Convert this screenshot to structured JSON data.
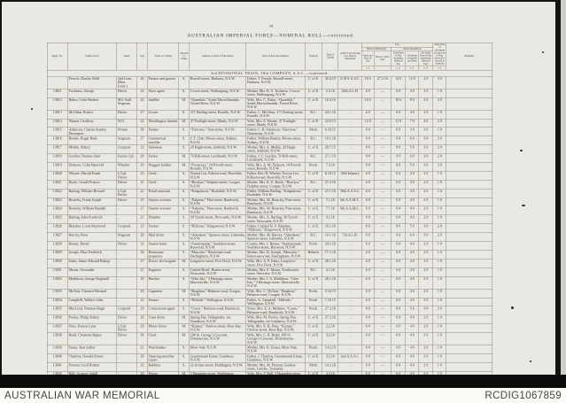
{
  "page": {
    "number": "19",
    "title": "AUSTRALIAN IMPERIAL FORCE—NOMINAL ROLL—continued.",
    "section": "3rd DIVISIONAL TRAIN, 18th COMPANY, A.S.C.—continued."
  },
  "footer": {
    "left": "AUSTRALIAN WAR MEMORIAL",
    "right": "RCDIG1067859"
  },
  "table": {
    "headers": {
      "regtl_no": "Regtl. No.",
      "name": "Name in full",
      "rank": "Rank",
      "age": "Age",
      "trade": "Trade or Calling",
      "ms": "Married or Single",
      "address": "Address at Date of Enrolment",
      "nok": "Next of Kin and Address",
      "religion": "Religion",
      "date_joining": "Date of Joining",
      "amf_unit": "A.M.F. Unit Serving in at Date of Enlistment",
      "pay": "Pay",
      "before": "Before Embarkation",
      "after": "After Embarkation",
      "rate": "Rank and Rate of Pay",
      "date_paid": "Date to which Paid",
      "daily": "Daily Rate of Pay, including Deferred Pay",
      "allot": "Allotment re-payable per Diem",
      "net": "Net Daily Rate of Pay (including Deferred Pay)",
      "allot2": "Daily Rate of Allotment (if any) out of Pay, directed to be paid in Australia",
      "remarks": "Remarks",
      "sd": "s. d."
    },
    "row_keys": [
      "no",
      "name",
      "rank",
      "age",
      "trade",
      "ms",
      "address",
      "nok",
      "religion",
      "date",
      "unit",
      "rate",
      "date_paid",
      "daily",
      "allot",
      "net",
      "allot2",
      "remarks"
    ],
    "center_cols": [
      "no",
      "age",
      "ms",
      "religion",
      "date",
      "unit",
      "rate",
      "date_paid",
      "daily",
      "allot",
      "net",
      "allot2"
    ],
    "rows": [
      [
        "",
        "French, Charles Wald",
        "2nd Lieut. (Hon. Lieut.)",
        "26",
        "Farmer and grazier",
        "S.",
        "Russell-street, Bathurst, N.S.W.",
        "Father, T. French, Russell-street, Bathurst, N.S.W.",
        "C. of E.",
        "30.4.15",
        "2/18 A.A.S.C.",
        "10 6",
        "27.2.16",
        "14 0",
        "12 0",
        "2 0",
        "3 0",
        ""
      ],
      [
        "13811",
        "Tuckness, George",
        "Driver",
        "22",
        "Store agent",
        "S.",
        "Crown-street, Wollongong, N.S.W.",
        "Mother, Mrs. R. S. Tuckness, Crown-street, Wollongong, N.S.W.",
        "C. of E.",
        "2.3.16",
        "26th A.L.H.",
        "6 0",
        "—",
        "6 0",
        "4 0",
        "2 0",
        "1 0",
        ""
      ],
      [
        "13812",
        "Baker, Colin Herbert",
        "Mil. Staff Sergeant",
        "22",
        "Saddler",
        "M.",
        "“Quambih,” South Murwillumbah, Tweed River, N.S.W.",
        "Wife, Mrs. C. Baker, “Quambih,” South Murwillumbah, Tweed River, N.S.W.",
        "C. of E.",
        "18.4.16",
        "..",
        "10 6",
        "—",
        "10 6",
        "8 0",
        "2 6",
        "2 0",
        ""
      ],
      [
        "13813",
        "McGlinn, Robert",
        "Driver",
        "27",
        "Grocer",
        "S.",
        "371 Darling-street, Rozelle, N.S.W.",
        "Father, C. McGlinn, 371 Darling-street, Rozelle, N.S.W.",
        "R.C.",
        "24.1.16",
        "..",
        "6 0",
        "—",
        "6 0",
        "4 0",
        "2 0",
        "1 0",
        ""
      ],
      [
        "13814",
        "Warner, Geoffrey",
        "W.O.",
        "22",
        "Metallurgist chemist",
        "M.",
        "47 Fairlight-street, Manly, N.S.W.",
        "Wife, Mrs. F. Warner, 47 Fairlight-street, Manly, N.S.W.",
        "C. of E.",
        "22.9.15",
        "..",
        "12 0",
        "—",
        "11 0",
        "7 0",
        "4 0",
        "2 0",
        ""
      ],
      [
        "13815",
        "Adamson, Charles Stanley Davenport",
        "Private",
        "30",
        "Farmer",
        "S.",
        "“Fairview,” Narromine, N.S.W.",
        "Father, C. B. Adamson, “Fairview,” Narromine, N.S.W.",
        "Meth.",
        "6.10.15",
        "..",
        "6 0",
        "—",
        "6 0",
        "3 0",
        "3 0",
        "1 0",
        ""
      ],
      [
        "13816",
        "Beattie, Roger Bede",
        "Sergeant",
        "27",
        "Commercial traveller",
        "S.",
        "C.T. Club, Moore-street, Sydney, N.S.W.",
        "Father, William Beattie, Moore-street, Sydney, N.S.W.",
        "R.C.",
        "10.1.16",
        "..",
        "9 0",
        "—",
        "9 0",
        "6 0",
        "3 0",
        "2 0",
        ""
      ],
      [
        "13817",
        "Meikle, Sidney",
        "Corporal",
        "23",
        "Salesman",
        "S.",
        "29 Hugh-street, Ashfield, N.S.W.",
        "Mother, Mrs. A. Meikle, 29 Hugh-street, Ashfield, N.S.W.",
        "C. of E.",
        "29.7.15",
        "..",
        "8 6",
        "—",
        "8 6",
        "5 6",
        "3 0",
        "2 0",
        ""
      ],
      [
        "13818",
        "Gordon, Thomas Alan",
        "Farrier Cpl.",
        "28",
        "Farrier",
        "M.",
        "70 Hill-street, Leichhardt, N.S.W.",
        "Father, J. C. Gordon, 70 Hill-street, Leichhardt, N.S.W.",
        "R.C.",
        "27.1.16",
        "..",
        "9 0",
        "—",
        "9 0",
        "6 0",
        "3 0",
        "2 0",
        ""
      ],
      [
        "13819",
        "Dickson, Colin Harwold",
        "Wheeler",
        "29",
        "Waggon builder",
        "M.",
        "“Footscray,” 14 Powell-street, Rozelle, N.S.W.",
        "Wife, Mrs. A. M. Dickson, 14 Powell-street, Rozelle, N.S.W.",
        "Presb.",
        "7.3.16",
        "..",
        "8 0",
        "—",
        "8 0",
        "5 0",
        "3 0",
        "2 0",
        ""
      ],
      [
        "13820",
        "Wheate, Harold Frank",
        "L/Cpl. Driver",
        "25",
        "Clerk",
        "S.",
        "Norton Lea, Killeen-road, Roseville, N.S.W.",
        "Father, Rev. H. Wheate, Norton Lea, Killeen-road, Roseville, N.S.W.",
        "C. of E.",
        "6.10.15",
        "36th Infantry",
        "6 0",
        "—",
        "6 0",
        "4 0",
        "2 0",
        "1 0",
        ""
      ],
      [
        "13821",
        "Boyle, Gerald Francis",
        "Driver",
        "21",
        "Clerk",
        "S.",
        "“Rosslyn,” Dolphin-street, Coogee, N.S.W.",
        "Mother, Mrs. K. E. Boyle, “Rosslyn,” Dolphin-street, Coogee, N.S.W.",
        "R.C.",
        "27.3.16",
        "..",
        "6 0",
        "—",
        "6 0",
        "4 0",
        "2 0",
        "1 0",
        ""
      ],
      [
        "13822",
        "Barling, William Howard",
        "L/Cpl. Driver",
        "22",
        "Postal assistant",
        "S.",
        "“Kingsdown,” Rockdale, N.S.W.",
        "Father, William Barling, “Kingsdown,” Rockdale, N.S.W.",
        "C. of E.",
        "27.1.16",
        "30th A.A.S.C.",
        "6 0",
        "—",
        "6 0",
        "4 0",
        "2 0",
        "1 0",
        ""
      ],
      [
        "13823",
        "Brearley, Frank Joseph",
        "Driver",
        "25",
        "Station overseer",
        "S.",
        "“Nalpena,” Pine-street, Randwick, N.S.W.",
        "Mother, Mrs. M. Brearley, Pine-street, Randwick, N.S.W.",
        "C. of E.",
        "7.1.16",
        "6th A.A.M.C.",
        "6 0",
        "—",
        "6 0",
        "4 0",
        "2 0",
        "1 0",
        ""
      ],
      [
        "13824",
        "Brearley, William Randall",
        "..",
        "27",
        "Station overseer",
        "S.",
        "“Nalpena,” Pine-street, Randwick, N.S.W.",
        "Mother, Mrs. M. Brearley, Pine-street, Randwick, N.S.W.",
        "C. of E.",
        "7.1.16",
        "6th A.A.M.C.",
        "6 0",
        "—",
        "6 0",
        "4 0",
        "2 0",
        "1 0",
        ""
      ],
      [
        "13825",
        "Barling, John Frederick",
        "..",
        "21",
        "Plumber",
        "S.",
        "30 Tyrrell-street, Newcastle, N.S.W.",
        "Mother, Mrs. A. Barling, 30 Tyrrell-street, Newcastle, N.S.W.",
        "C. of E.",
        "4.1.16",
        "..",
        "6 0",
        "—",
        "6 0",
        "4 0",
        "2 0",
        "1 0",
        ""
      ],
      [
        "13826",
        "Blaydon, Louis Raymond",
        "Corporal",
        "23",
        "Farmer",
        "S.",
        "“Hillcrest,” Kingswood, N.S.W.",
        "Father, Colonel H. S. Blaydon, “Hillcrest,” Kingswood, N.S.W.",
        "C. of E.",
        "16.1.16",
        "..",
        "8 6",
        "—",
        "8 6",
        "5 6",
        "3 0",
        "2 0",
        ""
      ],
      [
        "13827",
        "Harvey, Peter",
        "Sergeant",
        "29",
        "Mail driver",
        "S.",
        "“Aberdeen,” Spencer-street, Lakemba, N.S.W.",
        "Mother, Mrs. M. Harvey, “Aberdeen,” Spencer-street, Lakemba, N.S.W.",
        "R.C.",
        "14.1.16",
        "7th A.L.H.",
        "9 0",
        "—",
        "9 0",
        "6 0",
        "3 0",
        "2 0",
        ""
      ],
      [
        "13828",
        "Hunter, David",
        "Driver",
        "31",
        "Station hand",
        "S.",
        "“Sunnymeade,” Souldern-street, Burwood, N.S.W.",
        "Cousin, Mrs. J. Hunter, “Sunnymeade,” Souldern-street, Burwood, N.S.W.",
        "Presb.",
        "24.1.16",
        "..",
        "6 0",
        "—",
        "6 0",
        "4 0",
        "2 0",
        "1 0",
        ""
      ],
      [
        "13829",
        "Joseph, Elias Frederick",
        "..",
        "34",
        "Restaurant proprietor",
        "S.",
        "“Mascotte,” Bayswater-road, Darlinghurst, N.S.W.",
        "Mother, Mrs. R. Joseph, “Mascotte,” Bayswater-road, Darlinghurst, N.S.W.",
        "Hebrew",
        "17.1.16",
        "..",
        "6 0",
        "—",
        "6 0",
        "4 0",
        "2 0",
        "1 0",
        ""
      ],
      [
        "13830",
        "Johns, James Edward Bishop",
        "..",
        "27",
        "Driver, fire brigade",
        "M.",
        "Longview-street, Five Dock, N.S.W.",
        "Wife, Mrs. A. P. Johns, Longview-street, Five Dock, N.S.W.",
        "C. of E.",
        "20.1.16",
        "..",
        "6 0",
        "—",
        "6 0",
        "4 0",
        "2 0",
        "1 0",
        ""
      ],
      [
        "13831",
        "Moran, Alexander",
        "..",
        "21",
        "Engineer",
        "S.",
        "Central Hotel, Hunter-street, Newcastle, N.S.W.",
        "Mother, Mrs. E. Moran, Kenilworth-street, Waverley, N.S.W.",
        "R.C.",
        "4.1.16",
        "..",
        "6 0",
        "—",
        "6 0",
        "4 0",
        "2 0",
        "1 0",
        ""
      ],
      [
        "13832",
        "Maddison, George Reginald",
        "..",
        "20",
        "Butcher",
        "S.",
        "“Glen Isla,” 3 Hastings-street, Marrickville, N.S.W.",
        "Mother, Mrs. I. A. Maddison, “Glen Isla,” 3 Hastings-street, Marrickville, N.S.W.",
        "C. of E.",
        "20.1.16",
        "..",
        "6 0",
        "—",
        "6 0",
        "4 0",
        "2 0",
        "1 0",
        ""
      ],
      [
        "13833",
        "McNair, Clarence Bernard",
        "..",
        "20",
        "Carpenter",
        "M.",
        "“Brighton,” Belmore-road, Coogee, N.S.W.",
        "Wife, Mrs. C. McNair, “Brighton,” Belmore-road, Coogee, N.S.W.",
        "Presb.",
        "5.10.15",
        "..",
        "6 0",
        "—",
        "6 0",
        "4 0",
        "2 0",
        "1 0",
        ""
      ],
      [
        "13834",
        "Campbell, Wallace John",
        "..",
        "23",
        "Farmer",
        "S.",
        "“Hillside,” Wellington, N.S.W.",
        "Father, A. Campbell, “Hillside,” Wellington, N.S.W.",
        "Presb.",
        "7.10.15",
        "..",
        "6 0",
        "—",
        "6 0",
        "4 0",
        "2 0",
        "1 0",
        ""
      ],
      [
        "13835",
        "MacLeod, Norman Hugh",
        "Corporal",
        "29",
        "Commission agent",
        "S.",
        "“Corea,” Belmore-road, Randwick, N.S.W.",
        "Sister, Mrs. E. A. McInnes, “Corea,” Belmore-road, Randwick, N.S.W.",
        "Presb.",
        "27.3.16",
        "..",
        "8 6",
        "—",
        "8 6",
        "5 6",
        "3 0",
        "2 0",
        ""
      ],
      [
        "13836",
        "Pooley, Philip Sidney",
        "Driver",
        "26",
        "Tram driver",
        "M.",
        "Spring Flat, Tallegandra, via Gundaroo, N.S.W.",
        "Wife, Mrs. M. Pooley, Spring Flat, Tallegandra, via Gundaroo, N.S.W.",
        "C. of E.",
        "27.3.16",
        "..",
        "6 0",
        "—",
        "6 0",
        "4 0",
        "2 0",
        "1 0",
        ""
      ],
      [
        "13837",
        "Prior, Francis Lyne",
        "L/Cpl. Driver",
        "29",
        "Motor driver",
        "M.",
        "“Kismet,” Onslow-street, Rose Bay, N.S.W.",
        "Wife, Mrs. E. B. Prior, “Kismet,” Onslow-street, Rose Bay, N.S.W.",
        "C. of E.",
        "2.2.16",
        "..",
        "6 0",
        "—",
        "6 0",
        "4 0",
        "2 0",
        "1 0",
        ""
      ],
      [
        "13838",
        "Rodd, Clements Ripley",
        "Driver",
        "30",
        "Clerk",
        "M.",
        "100 St. George’s Crescent, Drummoyne, N.S.W.",
        "Wife, Mrs. C. R. Rodd, 100 St. George’s Crescent, Drummoyne, N.S.W.",
        "C. of E.",
        "3.2.16",
        "..",
        "6 0",
        "—",
        "6 0",
        "4 0",
        "2 0",
        "1 0",
        ""
      ],
      [
        "13839",
        "Fraser, Ken Arthur",
        "..",
        "21",
        "Watchmaker",
        "S.",
        "Moss Vale, N.S.W.",
        "Mother, Mrs. K. Fraser, Moss Vale, N.S.W.",
        "Presb.",
        "14.2.16",
        "..",
        "6 0",
        "—",
        "6 0",
        "4 0",
        "2 0",
        "1 0",
        ""
      ],
      [
        "13840",
        "Thurlow, Oswald Ernest",
        "..",
        "29",
        "Shearing-machine expert",
        "S.",
        "Greenmount Estate, Gundaroo, N.S.W.",
        "Father, J. Thurlow, Greenmount Estate, Gundaroo, N.S.W.",
        "C. of E.",
        "3.2.16",
        "2nd A.A.S.C.",
        "6 0",
        "—",
        "6 0",
        "4 0",
        "2 0",
        "1 0",
        ""
      ],
      [
        "13841",
        "Preston, Cecil Robert",
        "..",
        "22",
        "Rabbiter",
        "S.",
        "22 Archer-street, Paddington, N.S.W.",
        "Mother, Mrs. M. Preston, Gordon-street, Latrobe, Tasmania",
        "Meth.",
        "14.2.16",
        "..",
        "6 0",
        "—",
        "6 0",
        "4 0",
        "2 0",
        "1 0",
        ""
      ],
      [
        "13842",
        "Hall, Gregory Askill",
        "..",
        "20",
        "Driver",
        "M.",
        "5 Hampden-street, Paddington, N.S.W.",
        "Wife, Mrs. F. Hall, 5 Hampden-street, Paddington, N.S.W.",
        "C. of E.",
        "3.4.16",
        "..",
        "6 0",
        "—",
        "6 0",
        "4 0",
        "2 0",
        "1 0",
        ""
      ],
      [
        "13843",
        "Piggott, Arthur Herbert",
        "Sdlr. Cpl.",
        "24",
        "Saddler",
        "S.",
        "West Kempsey, N.S.W.",
        "Mother, Mrs. F. Piggott, West Kempsey, N.S.W.",
        "Meth.",
        "10.1.16",
        "..",
        "9 0",
        "—",
        "9 0",
        "6 0",
        "3 0",
        "2 0",
        ""
      ],
      [
        "13844",
        "Williams, Ernest John",
        "Driver",
        "21",
        "Rigger",
        "S.",
        "Sydney, N.S.W.",
        "Mrs. R. Graham, 3 Darling-street, Sydney, N.S.W.",
        "C. of E.",
        "3.4.16",
        "..",
        "6 0",
        "—",
        "6 0",
        "4 0",
        "2 0",
        "1 0",
        ""
      ]
    ]
  },
  "colors": {
    "paper": "#e9e8e3",
    "ink": "#3a362e",
    "rule": "#8d887c",
    "band": "#0b0b0a",
    "footer_bg": "#fafaf7",
    "footer_text": "#454545"
  }
}
